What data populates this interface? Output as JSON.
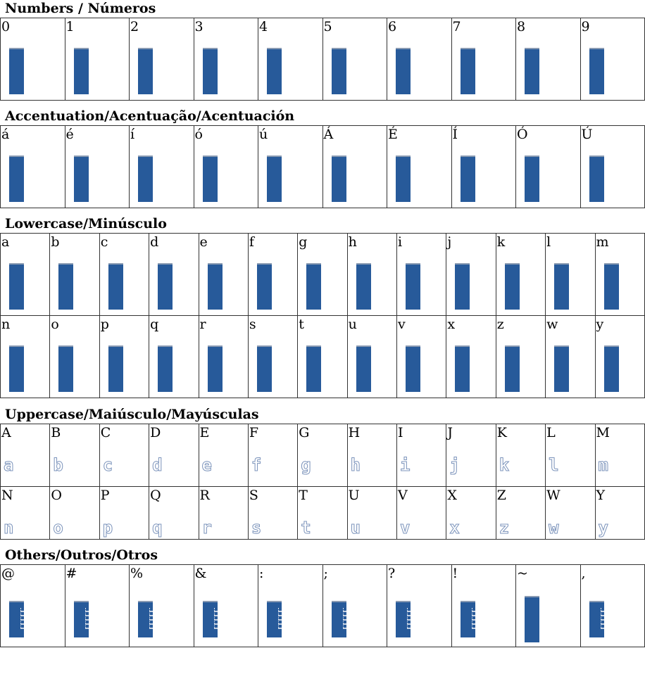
{
  "colors": {
    "bar": "#275a9a",
    "glyph_outline": "#7b93bb",
    "border": "#333333"
  },
  "sections": [
    {
      "title": "Numbers / Números",
      "style": "bar",
      "rows": [
        [
          "0",
          "1",
          "2",
          "3",
          "4",
          "5",
          "6",
          "7",
          "8",
          "9"
        ]
      ]
    },
    {
      "title": "Accentuation/Acentuação/Acentuación",
      "style": "bar",
      "rows": [
        [
          "á",
          "é",
          "í",
          "ó",
          "ú",
          "Á",
          "É",
          "Í",
          "Ó",
          "Ú"
        ]
      ]
    },
    {
      "title": "Lowercase/Minúsculo",
      "style": "bar",
      "rows": [
        [
          "a",
          "b",
          "c",
          "d",
          "e",
          "f",
          "g",
          "h",
          "i",
          "j",
          "k",
          "l",
          "m"
        ],
        [
          "n",
          "o",
          "p",
          "q",
          "r",
          "s",
          "t",
          "u",
          "v",
          "x",
          "z",
          "w",
          "y"
        ]
      ]
    },
    {
      "title": "Uppercase/Maiúsculo/Mayúsculas",
      "style": "glyph",
      "rows": [
        [
          "A",
          "B",
          "C",
          "D",
          "E",
          "F",
          "G",
          "H",
          "I",
          "J",
          "K",
          "L",
          "M"
        ],
        [
          "N",
          "O",
          "P",
          "Q",
          "R",
          "S",
          "T",
          "U",
          "V",
          "X",
          "Z",
          "W",
          "Y"
        ]
      ]
    },
    {
      "title": "Others/Outros/Otros",
      "style": "sym",
      "rows": [
        [
          "@",
          "#",
          "%",
          "&",
          ":",
          ";",
          "?",
          "!",
          "~",
          ","
        ]
      ]
    }
  ]
}
